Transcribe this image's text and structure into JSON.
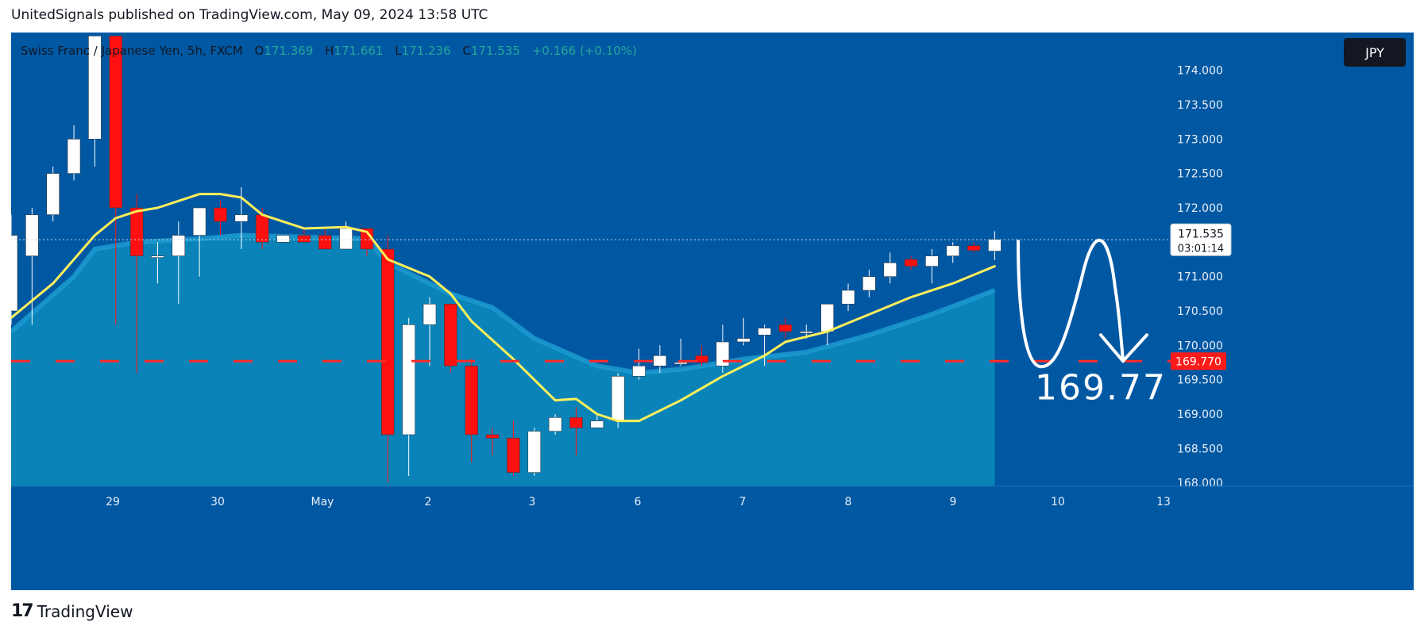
{
  "header": {
    "attribution": "UnitedSignals published on TradingView.com, May 09, 2024 13:58 UTC"
  },
  "legend": {
    "symbol": "Swiss Franc / Japanese Yen, 5h, FXCM",
    "open_label": "O",
    "open": "171.369",
    "high_label": "H",
    "high": "171.661",
    "low_label": "L",
    "low": "171.236",
    "close_label": "C",
    "close": "171.535",
    "change": "+0.166 (+0.10%)"
  },
  "currency_button": "JPY",
  "price_tag": {
    "price": "171.535",
    "countdown": "03:01:14"
  },
  "target_tag": "169.770",
  "annotation_text": "169.77",
  "footer": {
    "brand": "TradingView",
    "brand_mark": "17"
  },
  "colors": {
    "background": "#0058a3",
    "area_fill": "#0a84b8",
    "up_candle": "#ffffff",
    "down_candle": "#ff1010",
    "ma_line": "#fff05a",
    "target_line": "#ff2a2a",
    "tag_bg": "#ff1a1a"
  },
  "chart_data": {
    "type": "candlestick",
    "title": "Swiss Franc / Japanese Yen, 5h, FXCM",
    "ylim": [
      167.95,
      174.55
    ],
    "y_ticks": [
      174.0,
      173.5,
      173.0,
      172.5,
      172.0,
      171.5,
      171.0,
      170.5,
      170.0,
      169.5,
      169.0,
      168.5,
      168.0
    ],
    "y_tick_labels": [
      "174.000",
      "173.500",
      "173.000",
      "172.500",
      "172.000",
      "",
      "171.000",
      "170.500",
      "170.000",
      "169.500",
      "169.000",
      "168.500",
      "168.000"
    ],
    "x_labels": [
      "29",
      "30",
      "May",
      "2",
      "3",
      "6",
      "7",
      "8",
      "9",
      "10",
      "13"
    ],
    "candles": [
      {
        "o": 170.5,
        "h": 171.9,
        "l": 170.3,
        "c": 171.6
      },
      {
        "o": 171.3,
        "h": 172.0,
        "l": 170.3,
        "c": 171.9
      },
      {
        "o": 171.9,
        "h": 172.6,
        "l": 171.8,
        "c": 172.5
      },
      {
        "o": 172.5,
        "h": 173.2,
        "l": 172.4,
        "c": 173.0
      },
      {
        "o": 173.0,
        "h": 174.5,
        "l": 172.6,
        "c": 174.5
      },
      {
        "o": 174.5,
        "h": 174.5,
        "l": 170.3,
        "c": 172.0
      },
      {
        "o": 172.0,
        "h": 172.2,
        "l": 169.6,
        "c": 171.3
      },
      {
        "o": 171.3,
        "h": 171.5,
        "l": 170.9,
        "c": 171.3
      },
      {
        "o": 171.3,
        "h": 171.8,
        "l": 170.6,
        "c": 171.6
      },
      {
        "o": 171.6,
        "h": 172.0,
        "l": 171.0,
        "c": 172.0
      },
      {
        "o": 172.0,
        "h": 172.1,
        "l": 171.6,
        "c": 171.8
      },
      {
        "o": 171.8,
        "h": 172.3,
        "l": 171.4,
        "c": 171.9
      },
      {
        "o": 171.9,
        "h": 172.0,
        "l": 171.4,
        "c": 171.5
      },
      {
        "o": 171.5,
        "h": 171.6,
        "l": 171.5,
        "c": 171.6
      },
      {
        "o": 171.6,
        "h": 171.7,
        "l": 171.5,
        "c": 171.5
      },
      {
        "o": 171.6,
        "h": 171.7,
        "l": 171.4,
        "c": 171.4
      },
      {
        "o": 171.4,
        "h": 171.8,
        "l": 171.4,
        "c": 171.7
      },
      {
        "o": 171.7,
        "h": 171.7,
        "l": 171.3,
        "c": 171.4
      },
      {
        "o": 171.4,
        "h": 171.6,
        "l": 168.0,
        "c": 168.7
      },
      {
        "o": 168.7,
        "h": 170.4,
        "l": 168.1,
        "c": 170.3
      },
      {
        "o": 170.3,
        "h": 170.7,
        "l": 169.7,
        "c": 170.6
      },
      {
        "o": 170.6,
        "h": 170.6,
        "l": 169.6,
        "c": 169.7
      },
      {
        "o": 169.7,
        "h": 169.8,
        "l": 168.3,
        "c": 168.7
      },
      {
        "o": 168.7,
        "h": 168.8,
        "l": 168.4,
        "c": 168.65
      },
      {
        "o": 168.65,
        "h": 168.9,
        "l": 168.1,
        "c": 168.15
      },
      {
        "o": 168.15,
        "h": 168.8,
        "l": 168.1,
        "c": 168.75
      },
      {
        "o": 168.75,
        "h": 169.0,
        "l": 168.7,
        "c": 168.95
      },
      {
        "o": 168.95,
        "h": 169.1,
        "l": 168.4,
        "c": 168.8
      },
      {
        "o": 168.8,
        "h": 169.0,
        "l": 168.8,
        "c": 168.9
      },
      {
        "o": 168.9,
        "h": 169.6,
        "l": 168.8,
        "c": 169.55
      },
      {
        "o": 169.55,
        "h": 169.95,
        "l": 169.5,
        "c": 169.7
      },
      {
        "o": 169.7,
        "h": 170.0,
        "l": 169.6,
        "c": 169.85
      },
      {
        "o": 169.75,
        "h": 170.1,
        "l": 169.7,
        "c": 169.75
      },
      {
        "o": 169.85,
        "h": 170.0,
        "l": 169.7,
        "c": 169.75
      },
      {
        "o": 169.7,
        "h": 170.3,
        "l": 169.6,
        "c": 170.05
      },
      {
        "o": 170.05,
        "h": 170.4,
        "l": 170.0,
        "c": 170.1
      },
      {
        "o": 170.15,
        "h": 170.3,
        "l": 169.7,
        "c": 170.25
      },
      {
        "o": 170.3,
        "h": 170.4,
        "l": 170.1,
        "c": 170.2
      },
      {
        "o": 170.2,
        "h": 170.3,
        "l": 170.1,
        "c": 170.2
      },
      {
        "o": 170.2,
        "h": 170.6,
        "l": 170.0,
        "c": 170.6
      },
      {
        "o": 170.6,
        "h": 170.9,
        "l": 170.5,
        "c": 170.8
      },
      {
        "o": 170.8,
        "h": 171.1,
        "l": 170.7,
        "c": 171.0
      },
      {
        "o": 171.0,
        "h": 171.35,
        "l": 170.9,
        "c": 171.2
      },
      {
        "o": 171.25,
        "h": 171.3,
        "l": 171.1,
        "c": 171.15
      },
      {
        "o": 171.15,
        "h": 171.4,
        "l": 170.9,
        "c": 171.3
      },
      {
        "o": 171.3,
        "h": 171.5,
        "l": 171.2,
        "c": 171.45
      },
      {
        "o": 171.45,
        "h": 171.5,
        "l": 171.35,
        "c": 171.38
      },
      {
        "o": 171.37,
        "h": 171.66,
        "l": 171.24,
        "c": 171.54
      }
    ],
    "ma_line": [
      {
        "i": 0,
        "v": 170.4
      },
      {
        "i": 2,
        "v": 170.9
      },
      {
        "i": 4,
        "v": 171.6
      },
      {
        "i": 5,
        "v": 171.85
      },
      {
        "i": 6,
        "v": 171.95
      },
      {
        "i": 7,
        "v": 172.0
      },
      {
        "i": 9,
        "v": 172.2
      },
      {
        "i": 10,
        "v": 172.2
      },
      {
        "i": 11,
        "v": 172.15
      },
      {
        "i": 12,
        "v": 171.9
      },
      {
        "i": 14,
        "v": 171.7
      },
      {
        "i": 16,
        "v": 171.72
      },
      {
        "i": 17,
        "v": 171.65
      },
      {
        "i": 18,
        "v": 171.25
      },
      {
        "i": 20,
        "v": 171.0
      },
      {
        "i": 21,
        "v": 170.75
      },
      {
        "i": 22,
        "v": 170.35
      },
      {
        "i": 24,
        "v": 169.8
      },
      {
        "i": 26,
        "v": 169.2
      },
      {
        "i": 27,
        "v": 169.22
      },
      {
        "i": 28,
        "v": 169.0
      },
      {
        "i": 29,
        "v": 168.9
      },
      {
        "i": 30,
        "v": 168.9
      },
      {
        "i": 32,
        "v": 169.2
      },
      {
        "i": 34,
        "v": 169.55
      },
      {
        "i": 36,
        "v": 169.85
      },
      {
        "i": 37,
        "v": 170.05
      },
      {
        "i": 39,
        "v": 170.2
      },
      {
        "i": 41,
        "v": 170.45
      },
      {
        "i": 43,
        "v": 170.7
      },
      {
        "i": 45,
        "v": 170.9
      },
      {
        "i": 47,
        "v": 171.15
      }
    ],
    "area_top": [
      {
        "i": 0,
        "v": 170.2
      },
      {
        "i": 3,
        "v": 171.0
      },
      {
        "i": 4,
        "v": 171.4
      },
      {
        "i": 6,
        "v": 171.5
      },
      {
        "i": 9,
        "v": 171.55
      },
      {
        "i": 11,
        "v": 171.6
      },
      {
        "i": 17,
        "v": 171.55
      },
      {
        "i": 18,
        "v": 171.2
      },
      {
        "i": 21,
        "v": 170.75
      },
      {
        "i": 23,
        "v": 170.55
      },
      {
        "i": 25,
        "v": 170.1
      },
      {
        "i": 28,
        "v": 169.7
      },
      {
        "i": 30,
        "v": 169.6
      },
      {
        "i": 32,
        "v": 169.65
      },
      {
        "i": 35,
        "v": 169.8
      },
      {
        "i": 38,
        "v": 169.9
      },
      {
        "i": 41,
        "v": 170.15
      },
      {
        "i": 44,
        "v": 170.45
      },
      {
        "i": 47,
        "v": 170.8
      }
    ],
    "target_level": 169.77,
    "current_price": 171.535
  }
}
